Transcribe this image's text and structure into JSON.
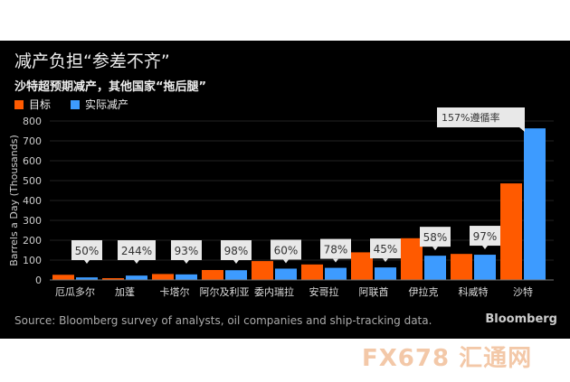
{
  "chart_data": {
    "type": "bar",
    "title": "减产负担“参差不齐”",
    "subtitle": "沙特超预期减产，其他国家“拖后腿”",
    "ylabel": "Barrels a Day (Thousands)",
    "ylim": [
      0,
      800
    ],
    "yticks": [
      0,
      100,
      200,
      300,
      400,
      500,
      600,
      700,
      800
    ],
    "grid": true,
    "legend_position": "top-left",
    "categories": [
      "厄瓜多尔",
      "加蓬",
      "卡塔尔",
      "阿尔及利亚",
      "委内瑞拉",
      "安哥拉",
      "阿联酋",
      "伊拉克",
      "科威特",
      "沙特"
    ],
    "series": [
      {
        "name": "目标",
        "color": "#ff5a00",
        "values": [
          26,
          9,
          30,
          50,
          95,
          78,
          139,
          210,
          131,
          486
        ]
      },
      {
        "name": "实际减产",
        "color": "#3d9bff",
        "values": [
          13,
          22,
          28,
          49,
          57,
          61,
          63,
          122,
          127,
          763
        ]
      }
    ],
    "annotations": [
      "50%",
      "244%",
      "93%",
      "98%",
      "60%",
      "78%",
      "45%",
      "58%",
      "97%",
      "157%遵循率"
    ]
  },
  "source": "Source: Bloomberg survey of analysts, oil companies and ship-tracking data.",
  "brand": "Bloomberg",
  "watermark": "FX678 汇通网"
}
